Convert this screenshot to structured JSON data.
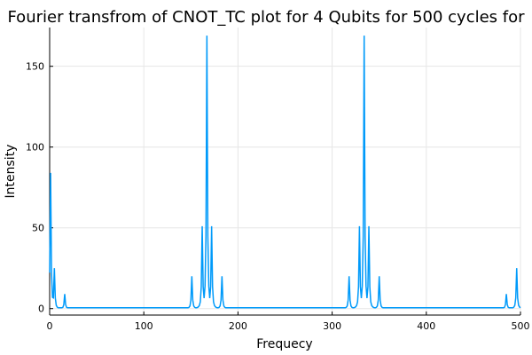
{
  "chart_data": {
    "type": "line",
    "title": "Fourier transfrom of CNOT_TC plot for 4 Qubits for 500 cycles for",
    "xlabel": "Frequecy",
    "ylabel": "Intensity",
    "xlim": [
      0,
      500
    ],
    "ylim": [
      -4,
      174
    ],
    "grid": true,
    "legend": "none",
    "series_color": "#009AFA",
    "x_ticks": [
      0,
      100,
      200,
      300,
      400,
      500
    ],
    "x_tick_labels": [
      "0",
      "100",
      "200",
      "300",
      "400",
      "500"
    ],
    "y_ticks": [
      0,
      50,
      100,
      150
    ],
    "y_tick_labels": [
      "0",
      "50",
      "100",
      "150"
    ],
    "baseline": 0.5,
    "peaks": [
      {
        "x": 1,
        "y": 84
      },
      {
        "x": 5,
        "y": 25
      },
      {
        "x": 16,
        "y": 9
      },
      {
        "x": 151,
        "y": 20
      },
      {
        "x": 162,
        "y": 51
      },
      {
        "x": 167,
        "y": 169
      },
      {
        "x": 172,
        "y": 51
      },
      {
        "x": 183,
        "y": 20
      },
      {
        "x": 318,
        "y": 20
      },
      {
        "x": 329,
        "y": 51
      },
      {
        "x": 334,
        "y": 169
      },
      {
        "x": 339,
        "y": 51
      },
      {
        "x": 350,
        "y": 20
      },
      {
        "x": 485,
        "y": 9
      },
      {
        "x": 496,
        "y": 25
      }
    ]
  }
}
